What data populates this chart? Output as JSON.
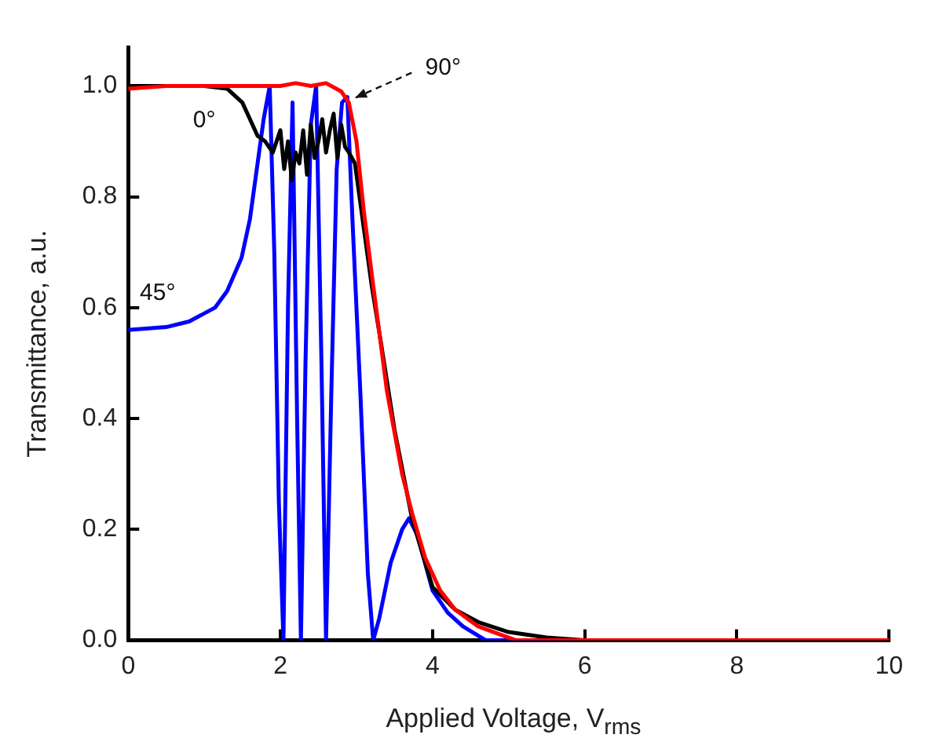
{
  "chart_data": {
    "type": "line",
    "xlabel": "Applied Voltage, V$_{rms}$",
    "ylabel": "Transmittance, a.u.",
    "xlim": [
      0,
      10
    ],
    "ylim": [
      0,
      1.07
    ],
    "xticks": [
      0,
      2,
      4,
      6,
      8,
      10
    ],
    "yticks": [
      {
        "value": 0,
        "label": "0.0"
      },
      {
        "value": 0.2,
        "label": "0.2"
      },
      {
        "value": 0.4,
        "label": "0.4"
      },
      {
        "value": 0.6,
        "label": "0.6"
      },
      {
        "value": 0.8,
        "label": "0.8"
      },
      {
        "value": 1,
        "label": "1.0"
      }
    ],
    "grid": false,
    "legend": false,
    "marker": "none",
    "line_style": "solid",
    "series": [
      {
        "name": "90°",
        "color": "#ff0000",
        "x": [
          0,
          0.5,
          1,
          1.5,
          2,
          2.2,
          2.4,
          2.6,
          2.8,
          2.9,
          3.0,
          3.1,
          3.22,
          3.4,
          3.6,
          3.73,
          3.9,
          4.1,
          4.3,
          4.6,
          4.9,
          5.1,
          6,
          8,
          10
        ],
        "values": [
          0.995,
          1.0,
          1.0,
          1.0,
          1.0,
          1.005,
          1.0,
          1.005,
          0.99,
          0.97,
          0.9,
          0.77,
          0.64,
          0.45,
          0.3,
          0.23,
          0.15,
          0.09,
          0.055,
          0.025,
          0.01,
          0.0,
          0.0,
          0.0,
          0.0
        ]
      },
      {
        "name": "0°",
        "color": "#000000",
        "x": [
          0,
          0.5,
          1,
          1.3,
          1.5,
          1.6,
          1.7,
          1.8,
          1.9,
          2.0,
          2.05,
          2.1,
          2.15,
          2.2,
          2.25,
          2.3,
          2.35,
          2.4,
          2.45,
          2.5,
          2.55,
          2.6,
          2.65,
          2.7,
          2.75,
          2.8,
          2.85,
          2.9,
          2.98,
          3.1,
          3.2,
          3.33,
          3.5,
          3.73,
          4.0,
          4.3,
          4.6,
          5.0,
          5.5,
          6,
          8,
          10
        ],
        "values": [
          1.0,
          1.0,
          1.0,
          0.995,
          0.97,
          0.94,
          0.91,
          0.9,
          0.88,
          0.92,
          0.85,
          0.9,
          0.83,
          0.88,
          0.86,
          0.92,
          0.84,
          0.93,
          0.87,
          0.9,
          0.94,
          0.88,
          0.92,
          0.95,
          0.87,
          0.93,
          0.89,
          0.88,
          0.86,
          0.74,
          0.64,
          0.53,
          0.38,
          0.22,
          0.096,
          0.055,
          0.033,
          0.015,
          0.005,
          0.0,
          0.0,
          0.0
        ]
      },
      {
        "name": "45°",
        "color": "#0000ff",
        "x": [
          0,
          0.5,
          0.8,
          1.14,
          1.3,
          1.49,
          1.6,
          1.69,
          1.78,
          1.86,
          1.92,
          1.98,
          2.04,
          2.1,
          2.16,
          2.22,
          2.27,
          2.33,
          2.4,
          2.47,
          2.54,
          2.6,
          2.67,
          2.74,
          2.81,
          2.88,
          2.95,
          3.05,
          3.15,
          3.22,
          3.3,
          3.45,
          3.6,
          3.69,
          3.8,
          4.0,
          4.2,
          4.4,
          4.7,
          5,
          6
        ],
        "values": [
          0.56,
          0.565,
          0.575,
          0.6,
          0.63,
          0.69,
          0.76,
          0.85,
          0.94,
          1.0,
          0.7,
          0.25,
          0.0,
          0.6,
          0.97,
          0.4,
          0.0,
          0.5,
          0.93,
          1.0,
          0.5,
          0.0,
          0.45,
          0.85,
          0.97,
          0.98,
          0.75,
          0.45,
          0.12,
          0.0,
          0.04,
          0.14,
          0.2,
          0.22,
          0.19,
          0.09,
          0.05,
          0.025,
          0.0,
          0.0,
          0.0
        ]
      }
    ]
  }
}
